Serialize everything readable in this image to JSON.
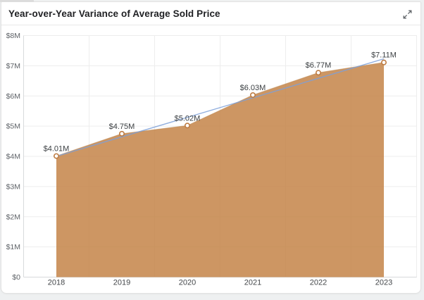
{
  "window": {
    "background": "#eef0f1"
  },
  "header": {
    "title": "Year-over-Year Variance of Average Sold Price",
    "expand_icon": "expand-icon"
  },
  "chart_data": {
    "type": "area",
    "title": "Year-over-Year Variance of Average Sold Price",
    "categories": [
      "2018",
      "2019",
      "2020",
      "2021",
      "2022",
      "2023"
    ],
    "series": [
      {
        "name": "Average Sold Price",
        "values": [
          4.01,
          4.75,
          5.02,
          6.03,
          6.77,
          7.11
        ],
        "labels": [
          "$4.01M",
          "$4.75M",
          "$5.02M",
          "$6.03M",
          "$6.77M",
          "$7.11M"
        ]
      }
    ],
    "trendline": {
      "type": "linear",
      "start_value": 4.0,
      "end_value": 7.23
    },
    "y_ticks": [
      {
        "value": 0,
        "label": "$0"
      },
      {
        "value": 1,
        "label": "$1M"
      },
      {
        "value": 2,
        "label": "$2M"
      },
      {
        "value": 3,
        "label": "$3M"
      },
      {
        "value": 4,
        "label": "$4M"
      },
      {
        "value": 5,
        "label": "$5M"
      },
      {
        "value": 6,
        "label": "$6M"
      },
      {
        "value": 7,
        "label": "$7M"
      },
      {
        "value": 8,
        "label": "$8M"
      }
    ],
    "ylim": [
      0,
      8
    ],
    "xlabel": "",
    "ylabel": "",
    "grid": true,
    "legend_position": "none",
    "colors": {
      "area_fill": "#C27F41",
      "area_fill_opacity": 0.82,
      "area_edge": "#B9854F",
      "trend_line": "#7DA0D8",
      "marker_fill": "#FFFFFF",
      "marker_stroke": "#BE7C43",
      "gridline": "#EDEDED",
      "axis_line": "#D8DADC",
      "data_label": "#3C4043",
      "y_axis_label": "#5F6368",
      "x_axis_label": "#44474A",
      "title": "#202124"
    }
  }
}
